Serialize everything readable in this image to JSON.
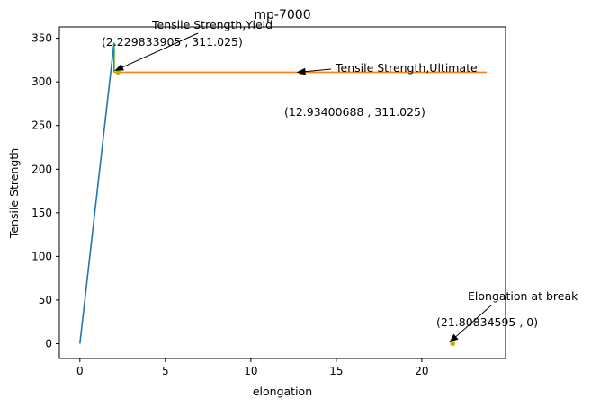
{
  "chart_data": {
    "type": "line",
    "title": "mp-7000",
    "xlabel": "elongation",
    "ylabel": "Tensile Strength",
    "xlim": [
      -1.2,
      24.9
    ],
    "ylim": [
      -17,
      363
    ],
    "x_ticks": [
      0,
      5,
      10,
      15,
      20
    ],
    "x_tick_labels": [
      "0",
      "5",
      "10",
      "15",
      "20"
    ],
    "y_ticks": [
      0,
      50,
      100,
      150,
      200,
      250,
      300,
      350
    ],
    "y_tick_labels": [
      "0",
      "50",
      "100",
      "150",
      "200",
      "250",
      "300",
      "350"
    ],
    "grid": false,
    "colors": {
      "elastic": "#1f77b4",
      "plastic": "#ff7f0e",
      "yield_drop": "#2ca02c",
      "markers": "#c8b400"
    },
    "series": [
      {
        "key": "elastic",
        "x": [
          0,
          2.0
        ],
        "y": [
          0,
          345
        ]
      },
      {
        "key": "yield_drop",
        "x": [
          2.0,
          2.0
        ],
        "y": [
          345,
          311.025
        ]
      },
      {
        "key": "plastic",
        "x": [
          2.0,
          23.8
        ],
        "y": [
          311.025,
          311.025
        ]
      }
    ],
    "points": [
      {
        "x": 2.229833905,
        "y": 311.025
      },
      {
        "x": 12.93400688,
        "y": 311.025
      },
      {
        "x": 21.80834595,
        "y": 0
      }
    ],
    "annotations": [
      {
        "label": "Tensile Strength,Yield",
        "coords": "(2.229833905 , 311.025)",
        "target": [
          2.229833905,
          311.025
        ]
      },
      {
        "label": "Tensile Strength,Ultimate",
        "coords": "(12.93400688 , 311.025)",
        "target": [
          12.93400688,
          311.025
        ]
      },
      {
        "label": "Elongation at break",
        "coords": "(21.80834595 , 0)",
        "target": [
          21.80834595,
          0
        ]
      }
    ]
  }
}
